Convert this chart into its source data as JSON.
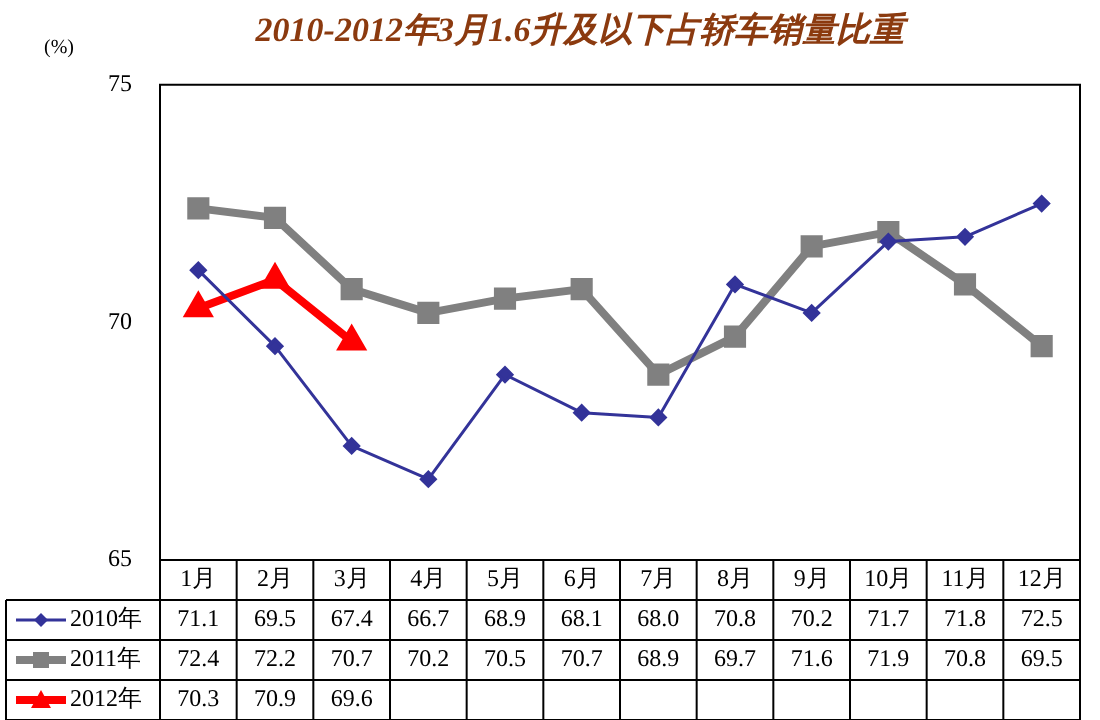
{
  "chart_data": {
    "type": "line",
    "title": "2010-2012年3月1.6升及以下占轿车销量比重",
    "ylabel": "(%)",
    "categories": [
      "1月",
      "2月",
      "3月",
      "4月",
      "5月",
      "6月",
      "7月",
      "8月",
      "9月",
      "10月",
      "11月",
      "12月"
    ],
    "series": [
      {
        "name": "2010年",
        "color": "#333399",
        "marker": "diamond",
        "values": [
          71.1,
          69.5,
          67.4,
          66.7,
          68.9,
          68.1,
          68.0,
          70.8,
          70.2,
          71.7,
          71.8,
          72.5
        ],
        "value_labels": [
          "71.1",
          "69.5",
          "67.4",
          "66.7",
          "68.9",
          "68.1",
          "68.0",
          "70.8",
          "70.2",
          "71.7",
          "71.8",
          "72.5"
        ]
      },
      {
        "name": "2011年",
        "color": "#808080",
        "marker": "square",
        "values": [
          72.4,
          72.2,
          70.7,
          70.2,
          70.5,
          70.7,
          68.9,
          69.7,
          71.6,
          71.9,
          70.8,
          69.5
        ],
        "value_labels": [
          "72.4",
          "72.2",
          "70.7",
          "70.2",
          "70.5",
          "70.7",
          "68.9",
          "69.7",
          "71.6",
          "71.9",
          "70.8",
          "69.5"
        ]
      },
      {
        "name": "2012年",
        "color": "#ff0000",
        "marker": "triangle",
        "values": [
          70.3,
          70.9,
          69.6,
          null,
          null,
          null,
          null,
          null,
          null,
          null,
          null,
          null
        ],
        "value_labels": [
          "70.3",
          "70.9",
          "69.6",
          null,
          null,
          null,
          null,
          null,
          null,
          null,
          null,
          null
        ]
      }
    ],
    "ylim": [
      65,
      75
    ],
    "yticks": [
      65,
      70,
      75
    ],
    "grid": false,
    "legend": "bottom left"
  }
}
